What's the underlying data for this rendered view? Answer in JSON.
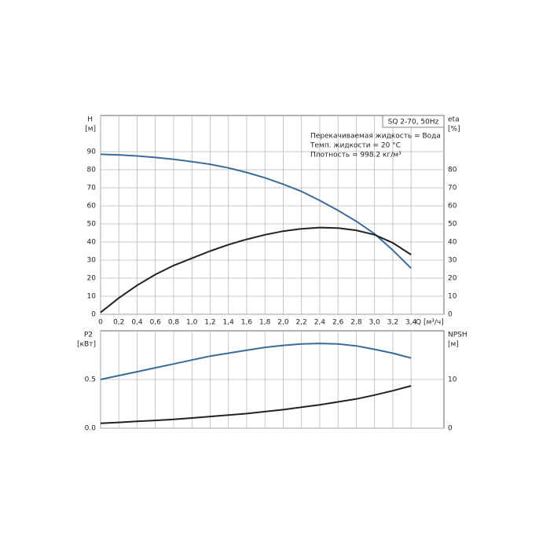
{
  "chart_data": [
    {
      "type": "line",
      "annotation_box": "SQ 2-70, 50Hz",
      "annotations": [
        "Перекачиваемая жидкость = Вода",
        "Темп. жидкости = 20 °C",
        "Плотность = 998.2 кг/м³"
      ],
      "ylabel": "H",
      "yunit": "[м]",
      "y2label": "eta",
      "y2unit": "[%]",
      "xlabel": "Q [м³/ч]",
      "x": [
        0,
        0.2,
        0.4,
        0.6,
        0.8,
        1.0,
        1.2,
        1.4,
        1.6,
        1.8,
        2.0,
        2.2,
        2.4,
        2.6,
        2.8,
        3.0,
        3.2,
        3.4
      ],
      "xlim": [
        0,
        3.76
      ],
      "xticks": [
        0,
        {
          "value": 0.2,
          "label": "0,2"
        },
        {
          "value": 0.4,
          "label": "0,4"
        },
        {
          "value": 0.6,
          "label": "0,6"
        },
        {
          "value": 0.8,
          "label": "0,8"
        },
        {
          "value": 1.0,
          "label": "1,0"
        },
        {
          "value": 1.2,
          "label": "1,2"
        },
        {
          "value": 1.4,
          "label": "1,4"
        },
        {
          "value": 1.6,
          "label": "1,6"
        },
        {
          "value": 1.8,
          "label": "1,8"
        },
        {
          "value": 2.0,
          "label": "2,0"
        },
        {
          "value": 2.2,
          "label": "2,2"
        },
        {
          "value": 2.4,
          "label": "2,4"
        },
        {
          "value": 2.6,
          "label": "2,6"
        },
        {
          "value": 2.8,
          "label": "2,8"
        },
        {
          "value": 3.0,
          "label": "3,0"
        },
        {
          "value": 3.2,
          "label": "3,2"
        },
        {
          "value": 3.4,
          "label": "3,4"
        }
      ],
      "ylim": [
        0,
        110
      ],
      "yticks": [
        0,
        10,
        20,
        30,
        40,
        50,
        60,
        70,
        80,
        90
      ],
      "y2lim": [
        0,
        110
      ],
      "y2ticks": [
        0,
        10,
        20,
        30,
        40,
        50,
        60,
        70,
        80
      ],
      "grid": true,
      "series": [
        {
          "name": "H",
          "color": "#3b6b9a",
          "values": [
            88.5,
            88.2,
            87.6,
            86.8,
            85.8,
            84.5,
            83,
            81,
            78.5,
            75.5,
            72,
            68,
            63,
            57.5,
            51.5,
            44.5,
            35.5,
            25.5
          ]
        },
        {
          "name": "eta",
          "color": "#222222",
          "axis": "y2",
          "values": [
            1,
            9,
            16,
            22,
            27,
            31,
            35,
            38.5,
            41.5,
            44,
            46,
            47.3,
            48,
            47.7,
            46.5,
            44,
            39.5,
            33
          ]
        }
      ]
    },
    {
      "type": "line",
      "ylabel": "P2",
      "yunit": "[кВт]",
      "y2label": "NPSH",
      "y2unit": "[м]",
      "x": [
        0,
        0.2,
        0.4,
        0.6,
        0.8,
        1.0,
        1.2,
        1.4,
        1.6,
        1.8,
        2.0,
        2.2,
        2.4,
        2.6,
        2.8,
        3.0,
        3.2,
        3.4
      ],
      "ylim": [
        0,
        1.0
      ],
      "yticks": [
        {
          "value": 0,
          "label": "0.0"
        },
        0.5
      ],
      "y2lim": [
        0,
        20
      ],
      "y2ticks": [
        0,
        10
      ],
      "grid": true,
      "series": [
        {
          "name": "P2",
          "color": "#3b6b9a",
          "values": [
            0.5,
            0.54,
            0.58,
            0.62,
            0.66,
            0.7,
            0.74,
            0.77,
            0.8,
            0.83,
            0.85,
            0.865,
            0.87,
            0.865,
            0.845,
            0.81,
            0.77,
            0.72
          ]
        },
        {
          "name": "NPSH",
          "color": "#222222",
          "axis": "y2",
          "values": [
            1.0,
            1.2,
            1.4,
            1.6,
            1.8,
            2.1,
            2.4,
            2.7,
            3.0,
            3.4,
            3.8,
            4.3,
            4.8,
            5.4,
            6.0,
            6.8,
            7.7,
            8.7
          ]
        }
      ]
    }
  ]
}
